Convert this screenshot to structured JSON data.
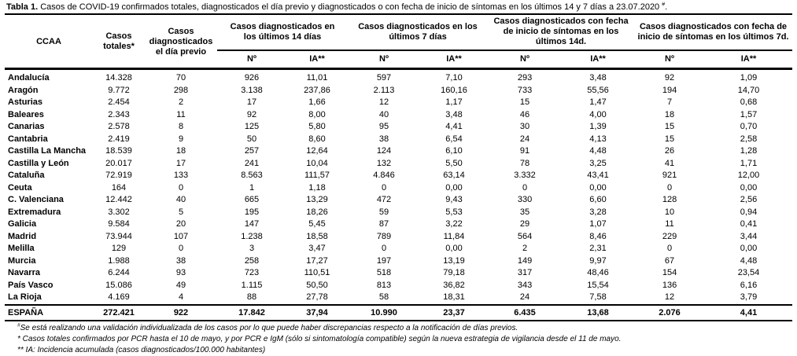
{
  "title": {
    "label": "Tabla 1.",
    "text": "Casos de COVID-19 confirmados totales, diagnosticados el día previo y diagnosticados o con fecha de inicio de síntomas en los últimos 14 y 7 días a 23.07.2020",
    "mark": "#",
    "end": "."
  },
  "headers": {
    "ccaa": "CCAA",
    "casos_totales": "Casos totales*",
    "diag_previo": "Casos diagnosticados el día previo",
    "grp_14": "Casos diagnosticados en los últimos 14 días",
    "grp_7": "Casos diagnosticados en los últimos 7 días",
    "grp_s14": "Casos diagnosticados con fecha de inicio de síntomas en los últimos 14d.",
    "grp_s7": "Casos diagnosticados con fecha de inicio de síntomas en los últimos 7d.",
    "n": "Nº",
    "ia": "IA**"
  },
  "rows": [
    [
      "Andalucía",
      "14.328",
      "70",
      "926",
      "11,01",
      "597",
      "7,10",
      "293",
      "3,48",
      "92",
      "1,09"
    ],
    [
      "Aragón",
      "9.772",
      "298",
      "3.138",
      "237,86",
      "2.113",
      "160,16",
      "733",
      "55,56",
      "194",
      "14,70"
    ],
    [
      "Asturias",
      "2.454",
      "2",
      "17",
      "1,66",
      "12",
      "1,17",
      "15",
      "1,47",
      "7",
      "0,68"
    ],
    [
      "Baleares",
      "2.343",
      "11",
      "92",
      "8,00",
      "40",
      "3,48",
      "46",
      "4,00",
      "18",
      "1,57"
    ],
    [
      "Canarias",
      "2.578",
      "8",
      "125",
      "5,80",
      "95",
      "4,41",
      "30",
      "1,39",
      "15",
      "0,70"
    ],
    [
      "Cantabria",
      "2.419",
      "9",
      "50",
      "8,60",
      "38",
      "6,54",
      "24",
      "4,13",
      "15",
      "2,58"
    ],
    [
      "Castilla La Mancha",
      "18.539",
      "18",
      "257",
      "12,64",
      "124",
      "6,10",
      "91",
      "4,48",
      "26",
      "1,28"
    ],
    [
      "Castilla y León",
      "20.017",
      "17",
      "241",
      "10,04",
      "132",
      "5,50",
      "78",
      "3,25",
      "41",
      "1,71"
    ],
    [
      "Cataluña",
      "72.919",
      "133",
      "8.563",
      "111,57",
      "4.846",
      "63,14",
      "3.332",
      "43,41",
      "921",
      "12,00"
    ],
    [
      "Ceuta",
      "164",
      "0",
      "1",
      "1,18",
      "0",
      "0,00",
      "0",
      "0,00",
      "0",
      "0,00"
    ],
    [
      "C. Valenciana",
      "12.442",
      "40",
      "665",
      "13,29",
      "472",
      "9,43",
      "330",
      "6,60",
      "128",
      "2,56"
    ],
    [
      "Extremadura",
      "3.302",
      "5",
      "195",
      "18,26",
      "59",
      "5,53",
      "35",
      "3,28",
      "10",
      "0,94"
    ],
    [
      "Galicia",
      "9.584",
      "20",
      "147",
      "5,45",
      "87",
      "3,22",
      "29",
      "1,07",
      "11",
      "0,41"
    ],
    [
      "Madrid",
      "73.944",
      "107",
      "1.238",
      "18,58",
      "789",
      "11,84",
      "564",
      "8,46",
      "229",
      "3,44"
    ],
    [
      "Melilla",
      "129",
      "0",
      "3",
      "3,47",
      "0",
      "0,00",
      "2",
      "2,31",
      "0",
      "0,00"
    ],
    [
      "Murcia",
      "1.988",
      "38",
      "258",
      "17,27",
      "197",
      "13,19",
      "149",
      "9,97",
      "67",
      "4,48"
    ],
    [
      "Navarra",
      "6.244",
      "93",
      "723",
      "110,51",
      "518",
      "79,18",
      "317",
      "48,46",
      "154",
      "23,54"
    ],
    [
      "País Vasco",
      "15.086",
      "49",
      "1.115",
      "50,50",
      "813",
      "36,82",
      "343",
      "15,54",
      "136",
      "6,16"
    ],
    [
      "La Rioja",
      "4.169",
      "4",
      "88",
      "27,78",
      "58",
      "18,31",
      "24",
      "7,58",
      "12",
      "3,79"
    ]
  ],
  "total": [
    "ESPAÑA",
    "272.421",
    "922",
    "17.842",
    "37,94",
    "10.990",
    "23,37",
    "6.435",
    "13,68",
    "2.076",
    "4,41"
  ],
  "notes": {
    "n1_mark": "#",
    "n1": "Se está realizando una validación individualizada de los casos por lo que puede haber discrepancias respecto a la notificación de días previos.",
    "n2": "*  Casos totales confirmados por PCR hasta el 10 de mayo, y por PCR e IgM (sólo si sintomatología compatible) según la nueva estrategia de vigilancia desde el 11 de mayo.",
    "n3": "** IA: Incidencia acumulada (casos diagnosticados/100.000 habitantes)"
  }
}
